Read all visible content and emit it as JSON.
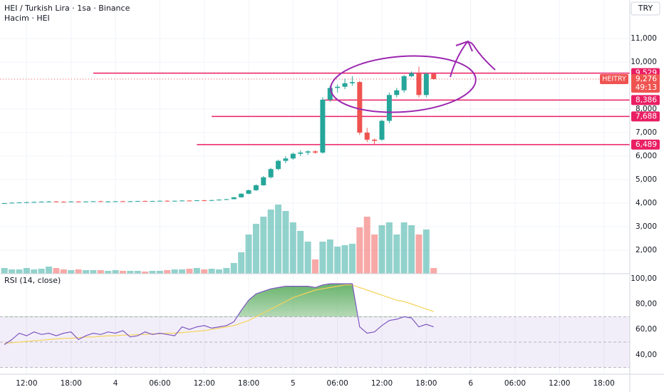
{
  "chart_data": {
    "type": "candlestick",
    "title": "HEI / Turkish Lira · 1sa · Binance",
    "volume_title": "Hacim · HEI",
    "currency": "TRY",
    "symbol": "HEITRY",
    "last_price": {
      "value": 9276,
      "label": "9,276"
    },
    "countdown": "49:13",
    "colors": {
      "up": "#26a69a",
      "down": "#ef5350",
      "level": "#e91e63",
      "rsi": "#7e57c2",
      "rsi_ma": "#f5d35b"
    },
    "xlim": [
      -3.6,
      81.5
    ],
    "xticks": [
      {
        "value": 0,
        "label": "12:00"
      },
      {
        "value": 6,
        "label": "18:00"
      },
      {
        "value": 12,
        "label": "4"
      },
      {
        "value": 18,
        "label": "06:00"
      },
      {
        "value": 24,
        "label": "12:00"
      },
      {
        "value": 30,
        "label": "18:00"
      },
      {
        "value": 36,
        "label": "5"
      },
      {
        "value": 42,
        "label": "06:00"
      },
      {
        "value": 48,
        "label": "12:00"
      },
      {
        "value": 54,
        "label": "18:00"
      },
      {
        "value": 60,
        "label": "6"
      },
      {
        "value": 66,
        "label": "06:00"
      },
      {
        "value": 72,
        "label": "12:00"
      },
      {
        "value": 78,
        "label": "18:00"
      }
    ],
    "x_start": -3,
    "ylim": [
      1000,
      12640
    ],
    "yticks": [
      {
        "value": 11000,
        "label": "11,000"
      },
      {
        "value": 10000,
        "label": "10,000"
      },
      {
        "value": 8000,
        "label": "8,000"
      },
      {
        "value": 7000,
        "label": "7,000"
      },
      {
        "value": 6000,
        "label": "6,000"
      },
      {
        "value": 5000,
        "label": "5,000"
      },
      {
        "value": 4000,
        "label": "4,000"
      },
      {
        "value": 3000,
        "label": "3,000"
      },
      {
        "value": 2000,
        "label": "2,000"
      }
    ],
    "levels": [
      {
        "value": 9529,
        "label": "9,529",
        "from": 9
      },
      {
        "value": 8386,
        "label": "8,386",
        "from": 40
      },
      {
        "value": 7688,
        "label": "7,688",
        "from": 25
      },
      {
        "value": 6489,
        "label": "6,489",
        "from": 23
      }
    ],
    "ohlc": [
      [
        3980,
        4010,
        3970,
        4000
      ],
      [
        4000,
        4030,
        3990,
        4020
      ],
      [
        4020,
        4040,
        4000,
        4030
      ],
      [
        4030,
        4060,
        4010,
        4040
      ],
      [
        4040,
        4070,
        4020,
        4050
      ],
      [
        4050,
        4080,
        4030,
        4060
      ],
      [
        4060,
        4090,
        4040,
        4070
      ],
      [
        4070,
        4090,
        4040,
        4060
      ],
      [
        4060,
        4080,
        4030,
        4050
      ],
      [
        4050,
        4080,
        4030,
        4070
      ],
      [
        4070,
        4090,
        4050,
        4060
      ],
      [
        4060,
        4080,
        4040,
        4070
      ],
      [
        4070,
        4090,
        4050,
        4080
      ],
      [
        4080,
        4100,
        4050,
        4060
      ],
      [
        4060,
        4090,
        4040,
        4070
      ],
      [
        4070,
        4090,
        4050,
        4080
      ],
      [
        4080,
        4100,
        4060,
        4070
      ],
      [
        4070,
        4090,
        4050,
        4080
      ],
      [
        4080,
        4100,
        4060,
        4090
      ],
      [
        4090,
        4110,
        4060,
        4080
      ],
      [
        4080,
        4100,
        4060,
        4090
      ],
      [
        4090,
        4110,
        4070,
        4100
      ],
      [
        4100,
        4120,
        4070,
        4090
      ],
      [
        4090,
        4110,
        4070,
        4100
      ],
      [
        4100,
        4130,
        4080,
        4110
      ],
      [
        4110,
        4130,
        4090,
        4100
      ],
      [
        4100,
        4130,
        4080,
        4120
      ],
      [
        4120,
        4140,
        4100,
        4110
      ],
      [
        4110,
        4140,
        4090,
        4130
      ],
      [
        4130,
        4160,
        4110,
        4150
      ],
      [
        4150,
        4180,
        4130,
        4170
      ],
      [
        4170,
        4260,
        4160,
        4250
      ],
      [
        4250,
        4420,
        4230,
        4400
      ],
      [
        4400,
        4580,
        4380,
        4550
      ],
      [
        4550,
        4800,
        4520,
        4760
      ],
      [
        4760,
        5150,
        4740,
        5100
      ],
      [
        5100,
        5500,
        5050,
        5450
      ],
      [
        5450,
        5850,
        5400,
        5800
      ],
      [
        5800,
        6000,
        5700,
        5900
      ],
      [
        5900,
        6150,
        5850,
        6100
      ],
      [
        6100,
        6250,
        6000,
        6150
      ],
      [
        6150,
        6250,
        6050,
        6200
      ],
      [
        6200,
        6250,
        6100,
        6150
      ],
      [
        6150,
        8500,
        6100,
        8400
      ],
      [
        8400,
        9000,
        8300,
        8900
      ],
      [
        8900,
        9050,
        8700,
        8950
      ],
      [
        8950,
        9300,
        8850,
        9100
      ],
      [
        9100,
        9400,
        9000,
        9150
      ],
      [
        9150,
        9200,
        6900,
        7000
      ],
      [
        7000,
        7200,
        6600,
        6700
      ],
      [
        6700,
        6750,
        6500,
        6650
      ],
      [
        6700,
        7550,
        6650,
        7500
      ],
      [
        7500,
        8700,
        7400,
        8600
      ],
      [
        8600,
        8900,
        8500,
        8800
      ],
      [
        8800,
        9450,
        8700,
        9400
      ],
      [
        9400,
        9600,
        9350,
        9529
      ],
      [
        9529,
        9800,
        8500,
        8600
      ],
      [
        8600,
        9550,
        8500,
        9500
      ],
      [
        9500,
        9520,
        9250,
        9276
      ]
    ],
    "volume": [
      8,
      6,
      6,
      8,
      6,
      7,
      10,
      8,
      6,
      5,
      6,
      5,
      5,
      5,
      4,
      5,
      4,
      4,
      4,
      3,
      4,
      4,
      5,
      6,
      6,
      7,
      8,
      6,
      7,
      6,
      8,
      15,
      30,
      55,
      70,
      80,
      90,
      97,
      88,
      72,
      60,
      45,
      20,
      45,
      48,
      38,
      40,
      42,
      65,
      80,
      55,
      68,
      72,
      55,
      72,
      68,
      55,
      62,
      8
    ],
    "rsi_title": "RSI (14, close)",
    "rsi": [
      48,
      52,
      57,
      55,
      58,
      56,
      57,
      55,
      57,
      58,
      52,
      55,
      57,
      56,
      58,
      57,
      59,
      54,
      55,
      58,
      56,
      57,
      56,
      55,
      62,
      60,
      62,
      63,
      61,
      62,
      63,
      66,
      75,
      83,
      88,
      90,
      92,
      93,
      94,
      94,
      94,
      94,
      93,
      95,
      96,
      96,
      96,
      96,
      62,
      57,
      58,
      63,
      67,
      68,
      70,
      69,
      62,
      64,
      62
    ],
    "rsi_ma": [
      49,
      49.5,
      50,
      50.5,
      51,
      51.5,
      52,
      52.5,
      53,
      53,
      53.5,
      54,
      54,
      54.5,
      55,
      55,
      55.5,
      55.5,
      56,
      56,
      56.5,
      56.5,
      57,
      57,
      57.5,
      58,
      58.5,
      59,
      60,
      61,
      62,
      63,
      65,
      67,
      70,
      73,
      76,
      79,
      82,
      85,
      87,
      89,
      91,
      92,
      93,
      94,
      95,
      95,
      93,
      91,
      89,
      87,
      85,
      83,
      82,
      80,
      78,
      76,
      74
    ],
    "rsi_ylim": [
      24.7,
      103.9
    ],
    "rsi_yticks": [
      {
        "value": 100,
        "label": "100,00"
      },
      {
        "value": 80,
        "label": "80,00"
      },
      {
        "value": 60,
        "label": "60,00"
      },
      {
        "value": 40,
        "label": "40,00"
      }
    ],
    "rsi_bands": [
      70,
      50,
      30
    ]
  }
}
